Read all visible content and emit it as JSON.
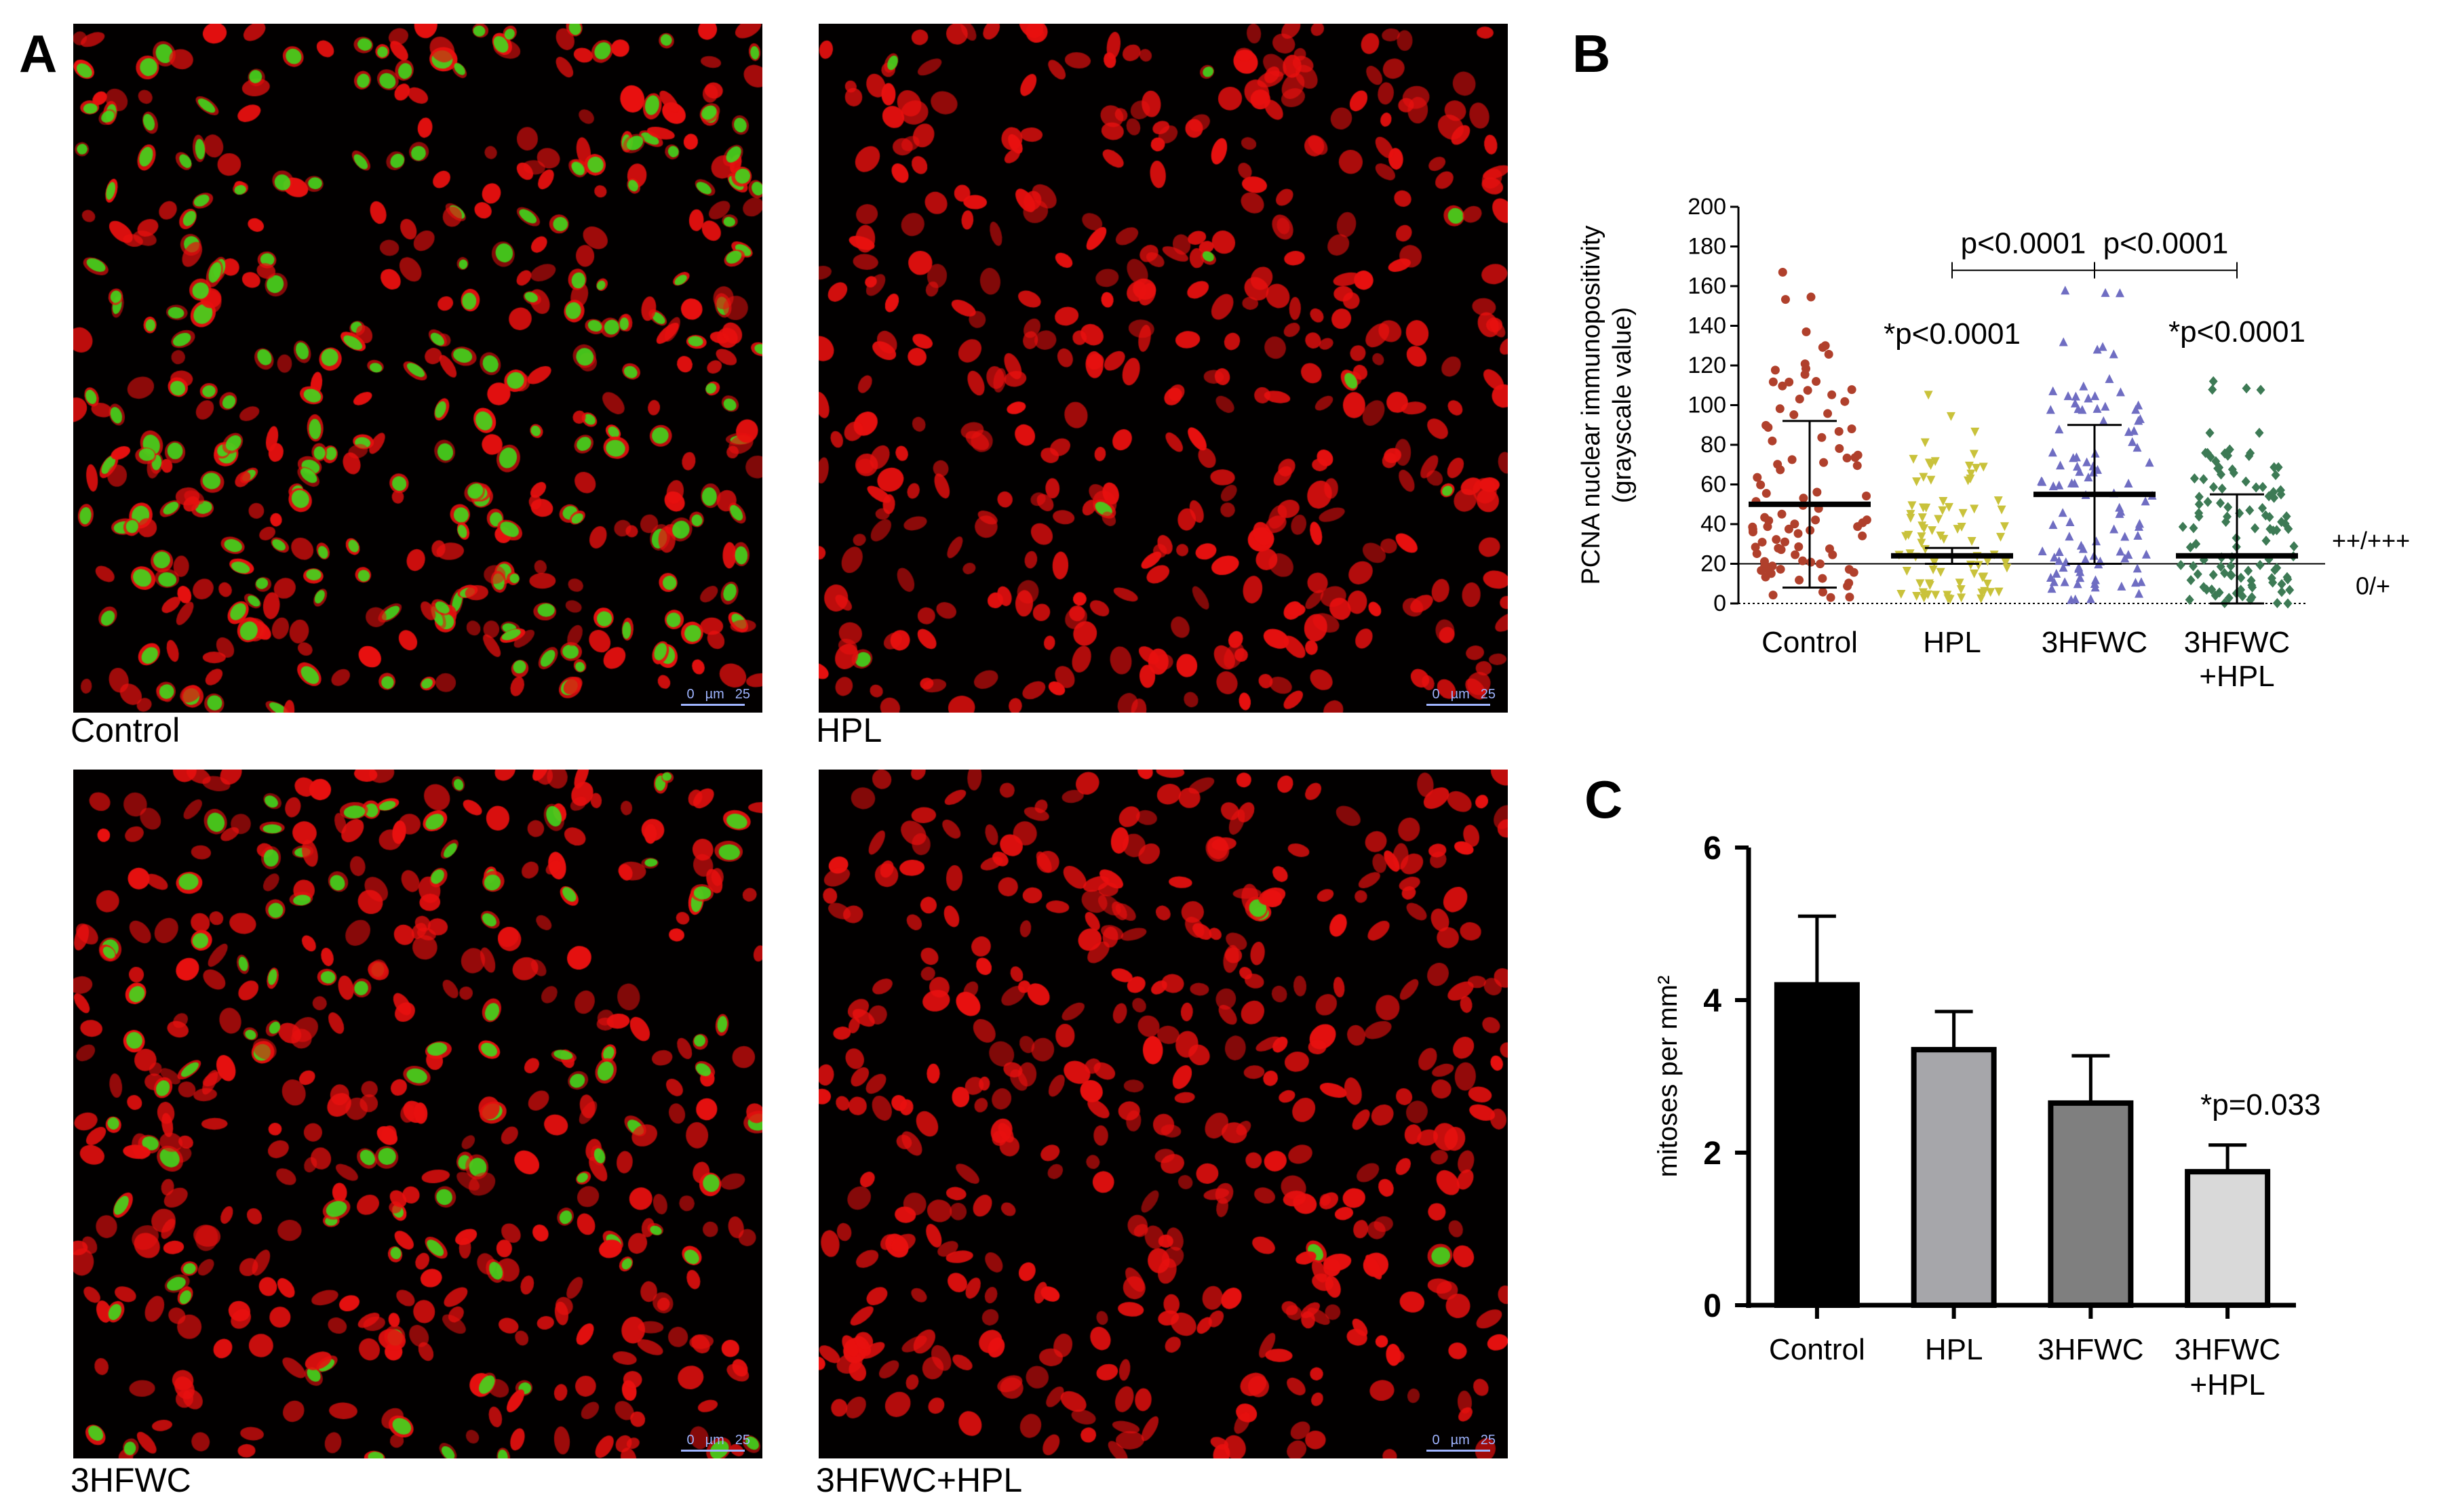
{
  "panel_letters": {
    "a": "A",
    "b": "B",
    "c": "C"
  },
  "micrographs": [
    {
      "caption": "Control",
      "scale_left": "0",
      "scale_unit": "µm",
      "scale_right": "25",
      "green_fraction": 0.5,
      "seed": 11
    },
    {
      "caption": "HPL",
      "scale_left": "0",
      "scale_unit": "µm",
      "scale_right": "25",
      "green_fraction": 0.02,
      "seed": 23
    },
    {
      "caption": "3HFWC",
      "scale_left": "0",
      "scale_unit": "µm",
      "scale_right": "25",
      "green_fraction": 0.22,
      "seed": 37
    },
    {
      "caption": "3HFWC+HPL",
      "scale_left": "0",
      "scale_unit": "µm",
      "scale_right": "25",
      "green_fraction": 0.01,
      "seed": 51
    }
  ],
  "colors": {
    "nucleus_red": "#e8100f",
    "nucleus_green": "#39e21f",
    "control_points": "#b0402c",
    "hpl_points": "#c9c23b",
    "hfwc_points": "#6f6dc2",
    "combo_points": "#3d7a55",
    "bar_control": "#000000",
    "bar_hpl": "#a6a6aa",
    "bar_hfwc": "#7f7f7f",
    "bar_combo": "#d9d9d9"
  },
  "chart_data": [
    {
      "type": "scatter",
      "panel": "B",
      "ylabel_line1": "PCNA nuclear immunopositivity",
      "ylabel_line2": "(grayscale value)",
      "ylim": [
        0,
        200
      ],
      "yticks": [
        "0",
        "20",
        "40",
        "60",
        "80",
        "100",
        "120",
        "140",
        "160",
        "180",
        "200"
      ],
      "categories": [
        "Control",
        "HPL",
        "3HFWC",
        "3HFWC\n+HPL"
      ],
      "category_labels": [
        [
          "Control"
        ],
        [
          "HPL"
        ],
        [
          "3HFWC"
        ],
        [
          "3HFWC",
          "+HPL"
        ]
      ],
      "series": [
        {
          "category": "Control",
          "mean": 50,
          "sd_low": 8,
          "sd_high": 92,
          "min": 3,
          "max": 167,
          "n": 95,
          "marker": "circle"
        },
        {
          "category": "HPL",
          "mean": 24,
          "sd_low": 20,
          "sd_high": 28,
          "min": 2,
          "max": 105,
          "n": 85,
          "marker": "triangle-down"
        },
        {
          "category": "3HFWC",
          "mean": 55,
          "sd_low": 20,
          "sd_high": 90,
          "min": 2,
          "max": 158,
          "n": 105,
          "marker": "triangle-up"
        },
        {
          "category": "3HFWC\n+HPL",
          "mean": 24,
          "sd_low": 0,
          "sd_high": 55,
          "min": 0,
          "max": 112,
          "n": 110,
          "marker": "diamond"
        }
      ],
      "threshold_value": 20,
      "threshold_label_above": "++/+++",
      "threshold_label_below": "0/+",
      "annotations": [
        {
          "text": "*p<0.0001",
          "category": "HPL",
          "y": 131
        },
        {
          "text": "*p<0.0001",
          "category": "3HFWC\n+HPL",
          "y": 132
        }
      ],
      "comparisons": [
        {
          "from": "HPL",
          "to": "3HFWC",
          "text": "p<0.0001",
          "y": 168
        },
        {
          "from": "3HFWC",
          "to": "3HFWC\n+HPL",
          "text": "p<0.0001",
          "y": 168
        }
      ]
    },
    {
      "type": "bar",
      "panel": "C",
      "ylabel": "mitoses per mm²",
      "ylim": [
        0,
        6
      ],
      "yticks": [
        "0",
        "2",
        "4",
        "6"
      ],
      "categories": [
        "Control",
        "HPL",
        "3HFWC",
        "3HFWC\n+HPL"
      ],
      "category_labels": [
        [
          "Control"
        ],
        [
          "HPL"
        ],
        [
          "3HFWC"
        ],
        [
          "3HFWC",
          "+HPL"
        ]
      ],
      "values": [
        4.2,
        3.35,
        2.65,
        1.75
      ],
      "errors": [
        0.9,
        0.5,
        0.62,
        0.35
      ],
      "annotation": {
        "text": "*p=0.033",
        "y": 2.5
      }
    }
  ]
}
